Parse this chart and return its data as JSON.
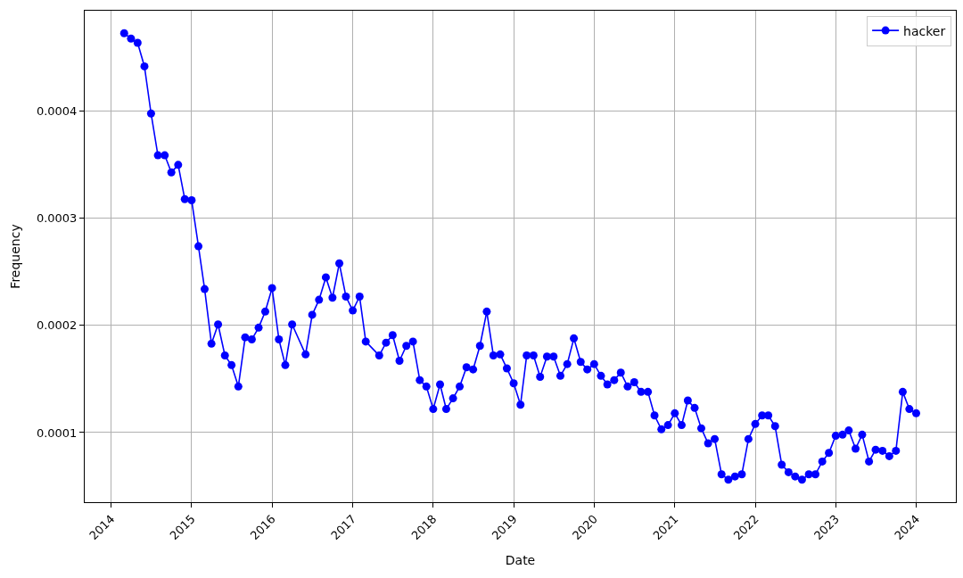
{
  "chart_data": {
    "type": "line",
    "xlabel": "Date",
    "ylabel": "Frequency",
    "x": [
      "2014-03",
      "2014-04",
      "2014-05",
      "2014-06",
      "2014-07",
      "2014-08",
      "2014-09",
      "2014-10",
      "2014-11",
      "2014-12",
      "2015-01",
      "2015-02",
      "2015-03",
      "2015-04",
      "2015-05",
      "2015-06",
      "2015-07",
      "2015-08",
      "2015-09",
      "2015-10",
      "2015-11",
      "2015-12",
      "2016-01",
      "2016-02",
      "2016-03",
      "2016-04",
      "2016-06",
      "2016-07",
      "2016-08",
      "2016-09",
      "2016-10",
      "2016-11",
      "2016-12",
      "2017-01",
      "2017-02",
      "2017-03",
      "2017-05",
      "2017-06",
      "2017-07",
      "2017-08",
      "2017-09",
      "2017-10",
      "2017-11",
      "2017-12",
      "2018-01",
      "2018-02",
      "2018-03",
      "2018-04",
      "2018-05",
      "2018-06",
      "2018-07",
      "2018-08",
      "2018-09",
      "2018-10",
      "2018-11",
      "2018-12",
      "2019-01",
      "2019-02",
      "2019-03",
      "2019-04",
      "2019-05",
      "2019-06",
      "2019-07",
      "2019-08",
      "2019-09",
      "2019-10",
      "2019-11",
      "2019-12",
      "2020-01",
      "2020-02",
      "2020-03",
      "2020-04",
      "2020-05",
      "2020-06",
      "2020-07",
      "2020-08",
      "2020-09",
      "2020-10",
      "2020-11",
      "2020-12",
      "2021-01",
      "2021-02",
      "2021-03",
      "2021-04",
      "2021-05",
      "2021-06",
      "2021-07",
      "2021-08",
      "2021-09",
      "2021-10",
      "2021-11",
      "2021-12",
      "2022-01",
      "2022-02",
      "2022-03",
      "2022-04",
      "2022-05",
      "2022-06",
      "2022-07",
      "2022-08",
      "2022-09",
      "2022-10",
      "2022-11",
      "2022-12",
      "2023-01",
      "2023-02",
      "2023-03",
      "2023-04",
      "2023-05",
      "2023-06",
      "2023-07",
      "2023-08",
      "2023-09",
      "2023-10",
      "2023-11",
      "2023-12",
      "2024-01"
    ],
    "series": [
      {
        "name": "hacker",
        "color": "#0000ff",
        "values": [
          0.000473,
          0.000468,
          0.000464,
          0.000442,
          0.000398,
          0.000359,
          0.000359,
          0.000343,
          0.00035,
          0.000318,
          0.000317,
          0.000274,
          0.000234,
          0.000183,
          0.000201,
          0.000172,
          0.000163,
          0.000143,
          0.000189,
          0.000187,
          0.000198,
          0.000213,
          0.000235,
          0.000187,
          0.000163,
          0.000201,
          0.000173,
          0.00021,
          0.000224,
          0.000245,
          0.000226,
          0.000258,
          0.000227,
          0.000214,
          0.000227,
          0.000185,
          0.000172,
          0.000184,
          0.000191,
          0.000167,
          0.000181,
          0.000185,
          0.000149,
          0.000143,
          0.000122,
          0.000145,
          0.000122,
          0.000132,
          0.000143,
          0.000161,
          0.000159,
          0.000181,
          0.000213,
          0.000172,
          0.000173,
          0.00016,
          0.000146,
          0.000126,
          0.000172,
          0.000172,
          0.000152,
          0.000171,
          0.000171,
          0.000153,
          0.000164,
          0.000188,
          0.000166,
          0.000159,
          0.000164,
          0.000153,
          0.000145,
          0.000149,
          0.000156,
          0.000143,
          0.000147,
          0.000138,
          0.000138,
          0.000116,
          0.000103,
          0.000107,
          0.000118,
          0.000107,
          0.00013,
          0.000123,
          0.000104,
          9e-05,
          9.4e-05,
          6.1e-05,
          5.6e-05,
          5.9e-05,
          6.1e-05,
          9.4e-05,
          0.000108,
          0.000116,
          0.000116,
          0.000106,
          7e-05,
          6.3e-05,
          5.9e-05,
          5.6e-05,
          6.1e-05,
          6.1e-05,
          7.3e-05,
          8.1e-05,
          9.7e-05,
          9.8e-05,
          0.000102,
          8.5e-05,
          9.8e-05,
          7.3e-05,
          8.4e-05,
          8.3e-05,
          7.8e-05,
          8.3e-05,
          0.000138,
          0.000122,
          0.000118
        ]
      }
    ],
    "xlim": [
      "2013-09-03",
      "2024-06-29"
    ],
    "xticks": [
      "2014",
      "2015",
      "2016",
      "2017",
      "2018",
      "2019",
      "2020",
      "2021",
      "2022",
      "2023",
      "2024"
    ],
    "ylim": [
      3.5e-05,
      0.000494
    ],
    "yticks": [
      0.0001,
      0.0002,
      0.0003,
      0.0004
    ],
    "grid": true,
    "legend": "top right",
    "marker": "circle",
    "line_style": "solid"
  }
}
